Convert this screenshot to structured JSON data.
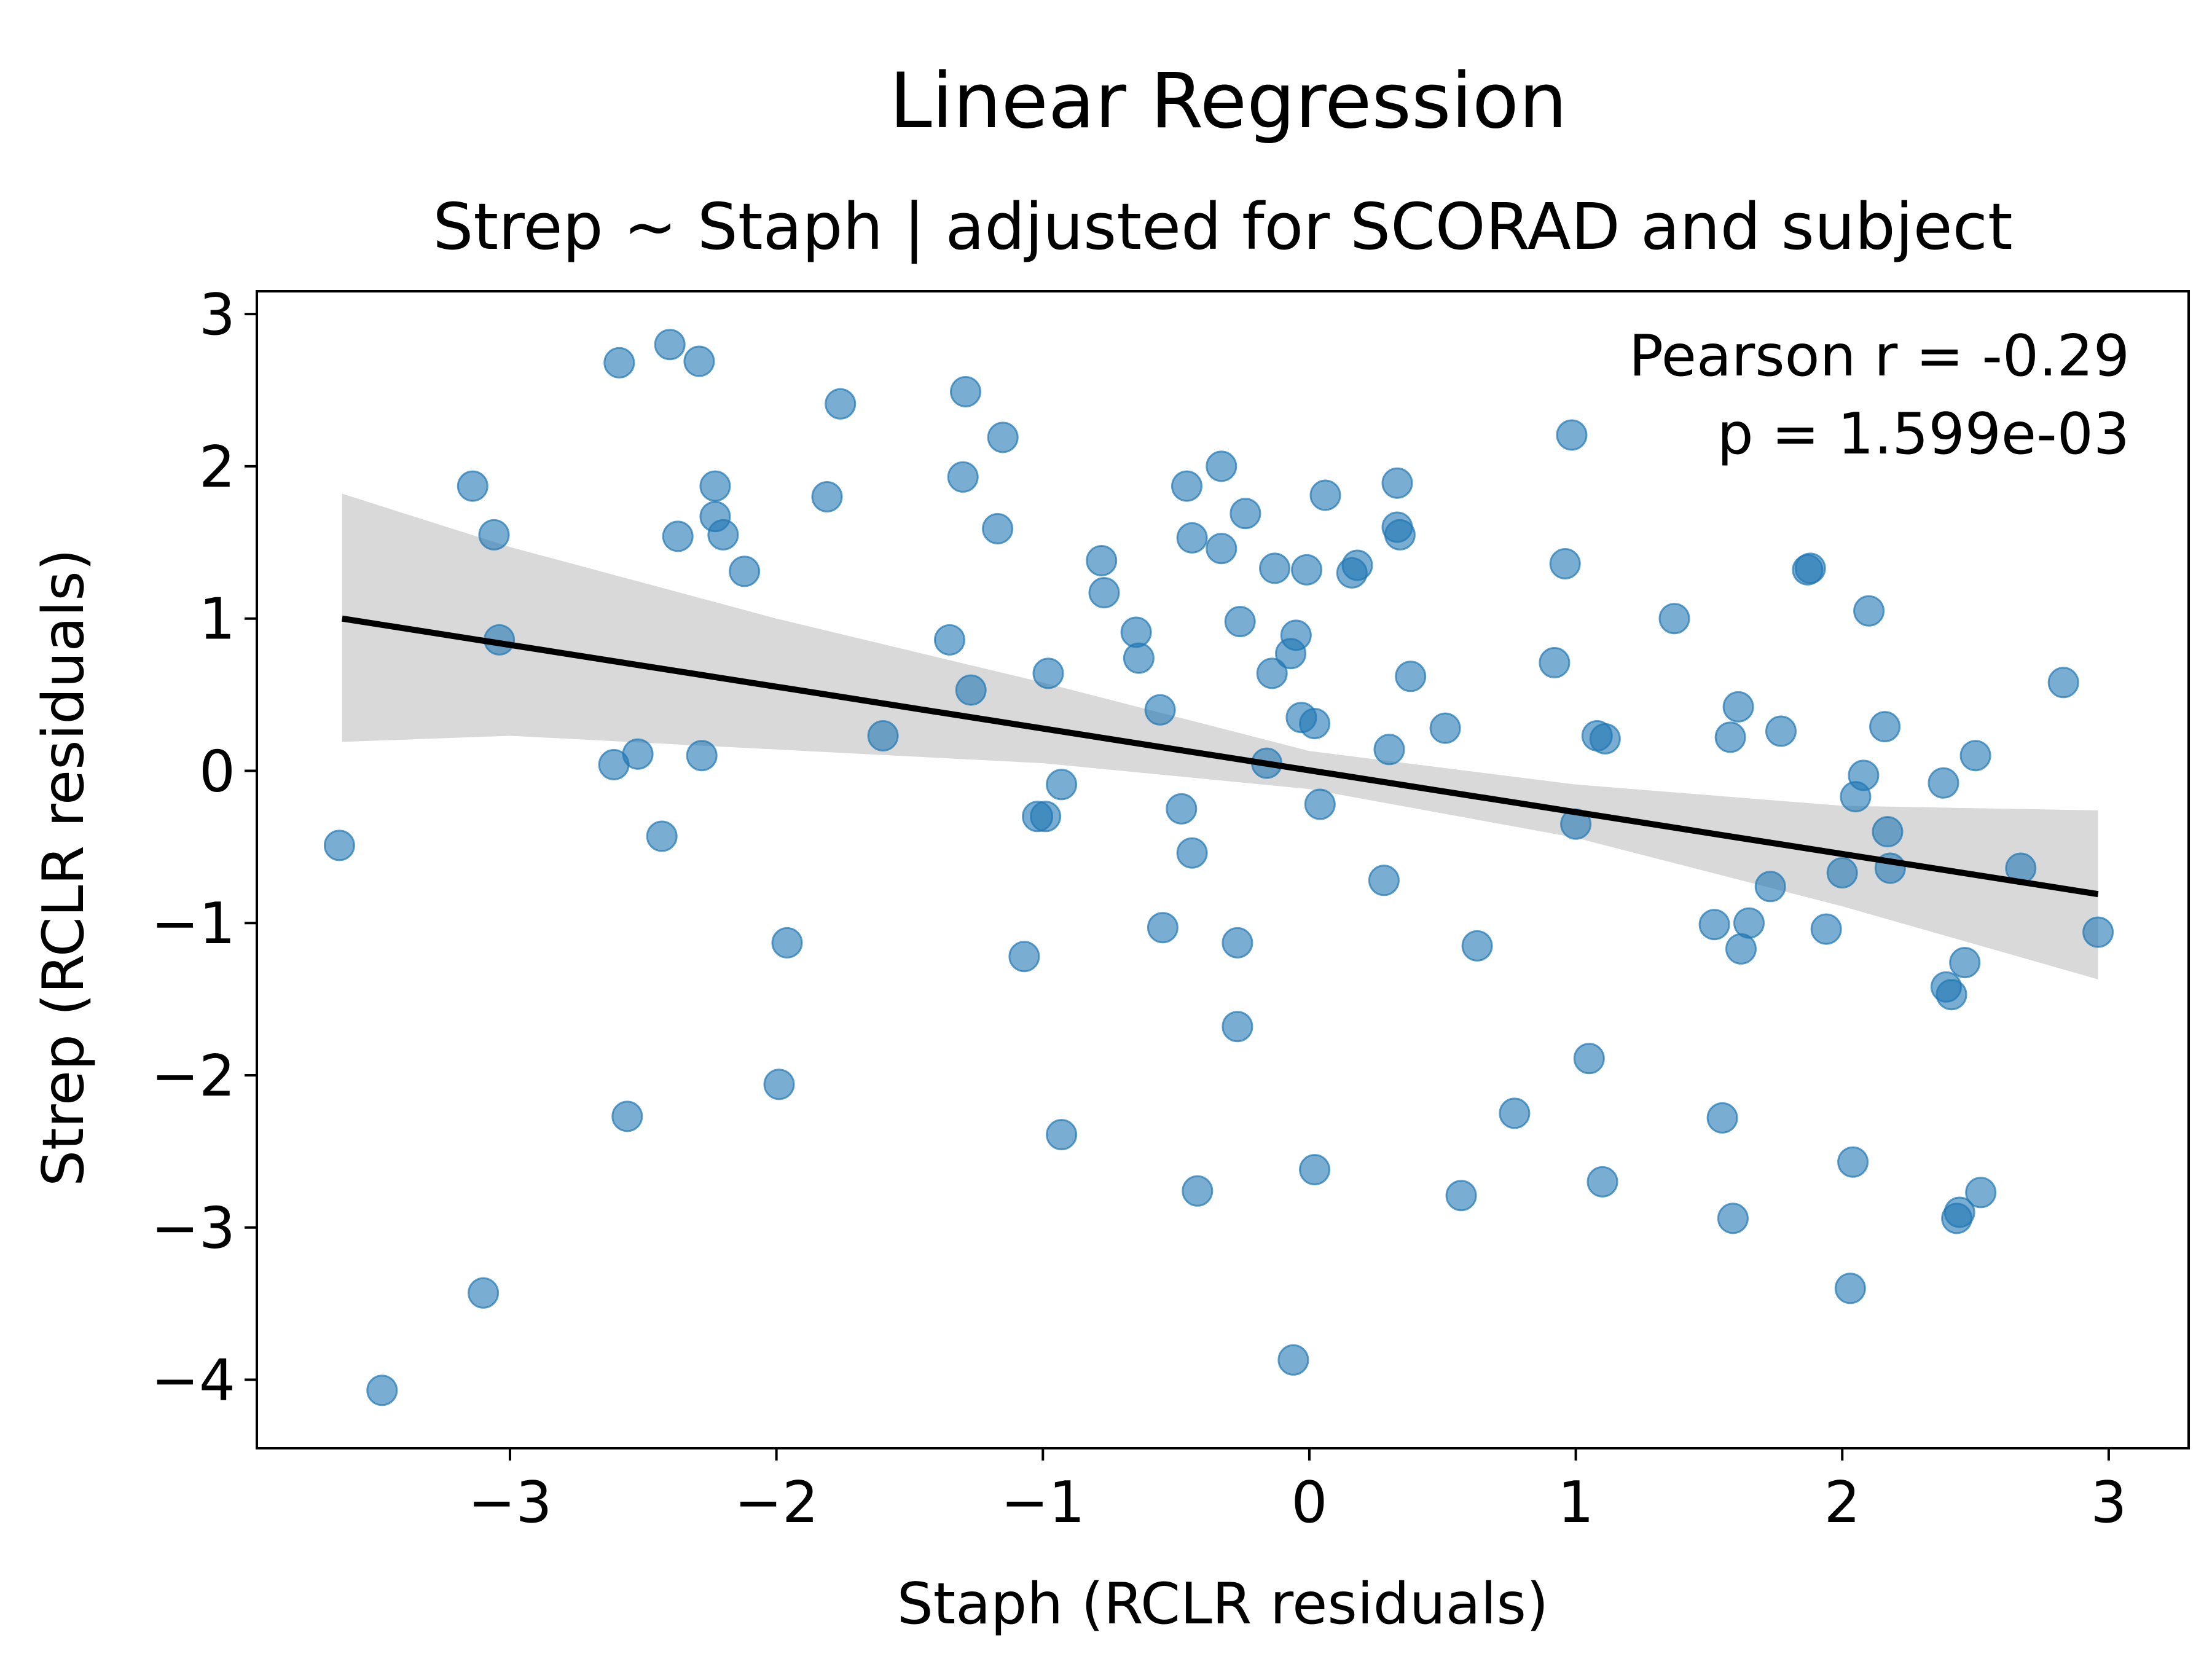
{
  "chart_data": {
    "type": "scatter",
    "title": "Linear Regression",
    "subtitle": "Strep ~ Staph | adjusted for SCORAD and subject",
    "xlabel": "Staph (RCLR residuals)",
    "ylabel": "Strep (RCLR residuals)",
    "xlim": [
      -3.95,
      3.3
    ],
    "ylim": [
      -4.45,
      3.15
    ],
    "xticks": [
      -3,
      -2,
      -1,
      0,
      1,
      2,
      3
    ],
    "xtick_labels": [
      "−3",
      "−2",
      "−1",
      "0",
      "1",
      "2",
      "3"
    ],
    "yticks": [
      3,
      2,
      1,
      0,
      -1,
      -2,
      -3,
      -4
    ],
    "ytick_labels": [
      "3",
      "2",
      "1",
      "0",
      "−1",
      "−2",
      "−3",
      "−4"
    ],
    "grid": false,
    "legend": {
      "placement": "top-right",
      "lines": [
        "Pearson r = -0.29",
        "p = 1.599e-03"
      ]
    },
    "colors": {
      "points": "#1f77b4",
      "regression_line": "#000000",
      "confidence_band": "#d9d9d9"
    },
    "regression": {
      "x": [
        -3.63,
        2.96
      ],
      "y": [
        1.0,
        -0.81
      ]
    },
    "confidence_band": {
      "x": [
        -3.63,
        -3.0,
        -2.0,
        -1.0,
        0.0,
        1.0,
        2.0,
        2.96
      ],
      "upper": [
        1.82,
        1.47,
        1.0,
        0.58,
        0.13,
        -0.09,
        -0.23,
        -0.26
      ],
      "lower": [
        0.19,
        0.23,
        0.14,
        0.05,
        -0.12,
        -0.44,
        -0.89,
        -1.37
      ]
    },
    "points": {
      "x": [
        -2.59,
        -2.4,
        -2.29,
        -3.14,
        -3.06,
        -2.23,
        -2.37,
        -2.23,
        -2.2,
        -2.12,
        -3.04,
        -3.64,
        -2.61,
        -2.52,
        -2.28,
        -2.43,
        -1.96,
        -1.99,
        -2.56,
        -3.1,
        -3.48,
        -1.76,
        -1.81,
        -1.29,
        -1.3,
        -1.15,
        -1.17,
        -1.35,
        -1.27,
        -1.6,
        -0.98,
        -1.02,
        -0.99,
        -0.93,
        -1.07,
        -0.93,
        -0.46,
        -0.33,
        -0.24,
        -0.44,
        -0.33,
        -0.78,
        -0.77,
        -0.65,
        -0.64,
        -0.26,
        -0.56,
        -0.48,
        -0.44,
        -0.55,
        -0.27,
        -0.27,
        -0.42,
        0.06,
        0.33,
        0.33,
        0.34,
        0.18,
        0.16,
        -0.13,
        -0.01,
        -0.05,
        -0.07,
        -0.14,
        -0.03,
        0.02,
        -0.16,
        0.04,
        0.38,
        0.3,
        0.28,
        0.51,
        0.63,
        0.02,
        -0.06,
        0.57,
        0.96,
        1.37,
        0.92,
        1.08,
        1.11,
        1.0,
        1.05,
        0.77,
        1.1,
        1.87,
        1.88,
        2.1,
        1.61,
        1.58,
        1.77,
        2.16,
        2.08,
        2.38,
        2.05,
        2.17,
        1.73,
        2.0,
        2.18,
        1.52,
        1.65,
        1.62,
        1.94,
        2.5,
        2.83,
        2.67,
        2.96,
        2.46,
        2.39,
        2.41,
        1.55,
        2.04,
        1.59,
        2.44,
        2.43,
        2.52,
        2.03
      ],
      "y": [
        2.68,
        2.8,
        2.69,
        1.87,
        1.55,
        1.87,
        1.54,
        1.67,
        1.55,
        1.31,
        0.86,
        -0.49,
        0.04,
        0.11,
        0.1,
        -0.43,
        -1.13,
        -2.06,
        -2.27,
        -3.43,
        -4.07,
        2.41,
        1.8,
        2.49,
        1.93,
        2.19,
        1.59,
        0.86,
        0.53,
        0.23,
        0.64,
        -0.3,
        -0.3,
        -0.09,
        -1.22,
        -2.39,
        1.87,
        2.0,
        1.69,
        1.53,
        1.46,
        1.38,
        1.17,
        0.91,
        0.74,
        0.98,
        0.4,
        -0.25,
        -0.54,
        -1.03,
        -1.13,
        -1.68,
        -2.76,
        1.81,
        1.89,
        1.6,
        1.55,
        1.35,
        1.3,
        1.33,
        1.32,
        0.89,
        0.77,
        0.64,
        0.35,
        0.31,
        0.05,
        -0.22,
        0.62,
        0.14,
        -0.72,
        0.28,
        -1.15,
        -2.62,
        -3.87,
        -2.79,
        1.36,
        1.0,
        0.71,
        0.23,
        0.21,
        -0.35,
        -1.89,
        -2.25,
        -2.7,
        1.32,
        1.33,
        1.05,
        0.42,
        0.22,
        0.26,
        0.29,
        -0.03,
        -0.08,
        -0.17,
        -0.4,
        -0.76,
        -0.67,
        -0.64,
        -1.01,
        -1.0,
        -1.17,
        -1.04,
        0.1,
        0.58,
        -0.64,
        -1.06,
        -1.26,
        -1.42,
        -1.47,
        -2.28,
        -2.57,
        -2.94,
        -2.9,
        -2.94,
        -2.77,
        -3.4
      ]
    }
  }
}
